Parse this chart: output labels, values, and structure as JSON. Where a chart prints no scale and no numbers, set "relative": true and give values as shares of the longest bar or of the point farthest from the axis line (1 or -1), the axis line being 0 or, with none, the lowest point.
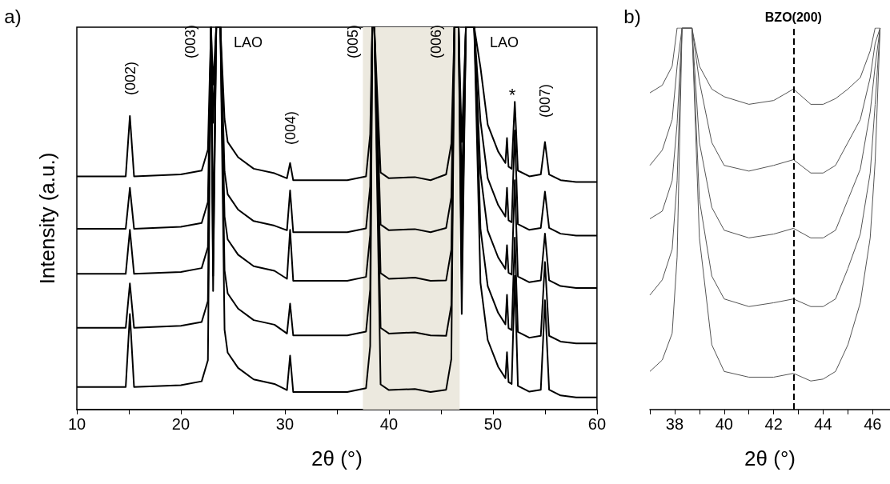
{
  "chart_data": [
    {
      "type": "line",
      "relative": true,
      "xlabel": "2θ (°)",
      "ylabel": "Intensity (a.u.)",
      "xlim": [
        10,
        60
      ],
      "xticks": [
        10,
        {
          "value": 15,
          "label": null
        },
        20,
        {
          "value": 25,
          "label": null
        },
        30,
        {
          "value": 35,
          "label": null
        },
        40,
        {
          "value": 45,
          "label": null
        },
        50,
        {
          "value": 55,
          "label": null
        },
        60
      ],
      "tick_labels": "x",
      "grid": false,
      "marker": "none",
      "line_style": "solid",
      "x": [
        10,
        14.7,
        15.1,
        15.5,
        20,
        22,
        22.6,
        22.9,
        23.1,
        23.4,
        23.8,
        24.2,
        24.5,
        25.5,
        27,
        29,
        30.2,
        30.5,
        30.8,
        33,
        36,
        37.8,
        38.2,
        38.4,
        38.6,
        39.2,
        40,
        42.5,
        44,
        45.5,
        46,
        46.3,
        46.7,
        47.0,
        47.4,
        47.8,
        48.2,
        48.8,
        49.5,
        50.5,
        51.2,
        51.35,
        51.5,
        51.8,
        52.1,
        52.4,
        53.5,
        54.6,
        55,
        55.4,
        56.5,
        58,
        60
      ],
      "series": [
        {
          "color": "#000000",
          "values": [
            0.61,
            0.61,
            0.768,
            0.61,
            0.615,
            0.625,
            0.68,
            1,
            0.85,
            1,
            1,
            0.76,
            0.7,
            0.66,
            0.63,
            0.618,
            0.605,
            0.645,
            0.6,
            0.6,
            0.6,
            0.61,
            0.72,
            1,
            1,
            0.62,
            0.605,
            0.608,
            0.6,
            0.615,
            0.695,
            1,
            1,
            0.7,
            1,
            1,
            1,
            0.895,
            0.745,
            0.675,
            0.645,
            0.71,
            0.635,
            0.63,
            0.805,
            0.625,
            0.61,
            0.615,
            0.7,
            0.615,
            0.6,
            0.595,
            0.595
          ]
        },
        {
          "color": "#000000",
          "values": [
            0.473,
            0.473,
            0.58,
            0.473,
            0.478,
            0.488,
            0.543,
            1,
            0.75,
            1,
            1,
            0.623,
            0.563,
            0.523,
            0.493,
            0.481,
            0.469,
            0.573,
            0.464,
            0.464,
            0.464,
            0.474,
            0.584,
            1,
            1,
            0.484,
            0.469,
            0.472,
            0.464,
            0.475,
            0.555,
            1,
            1,
            0.57,
            1,
            1,
            1,
            0.755,
            0.605,
            0.535,
            0.505,
            0.58,
            0.495,
            0.49,
            0.73,
            0.485,
            0.47,
            0.475,
            0.57,
            0.475,
            0.46,
            0.455,
            0.455
          ]
        },
        {
          "color": "#000000",
          "values": [
            0.355,
            0.355,
            0.47,
            0.355,
            0.36,
            0.37,
            0.425,
            1,
            0.31,
            1,
            1,
            0.505,
            0.445,
            0.405,
            0.375,
            0.363,
            0.342,
            0.47,
            0.337,
            0.337,
            0.337,
            0.347,
            0.457,
            1,
            1,
            0.357,
            0.342,
            0.345,
            0.337,
            0.338,
            0.418,
            1,
            1,
            0.45,
            1,
            1,
            1,
            0.618,
            0.468,
            0.398,
            0.368,
            0.43,
            0.358,
            0.353,
            0.6,
            0.348,
            0.333,
            0.338,
            0.46,
            0.338,
            0.323,
            0.318,
            0.318
          ]
        },
        {
          "color": "#000000",
          "values": [
            0.214,
            0.214,
            0.33,
            0.214,
            0.219,
            0.229,
            0.284,
            1,
            0.45,
            1,
            1,
            0.364,
            0.304,
            0.264,
            0.234,
            0.222,
            0.199,
            0.277,
            0.194,
            0.194,
            0.194,
            0.204,
            0.314,
            1,
            1,
            0.214,
            0.199,
            0.202,
            0.194,
            0.193,
            0.273,
            1,
            1,
            0.34,
            1,
            1,
            1,
            0.473,
            0.323,
            0.253,
            0.223,
            0.3,
            0.213,
            0.208,
            0.45,
            0.203,
            0.188,
            0.193,
            0.386,
            0.193,
            0.178,
            0.173,
            0.173
          ]
        },
        {
          "color": "#000000",
          "values": [
            0.059,
            0.059,
            0.25,
            0.059,
            0.064,
            0.074,
            0.129,
            1,
            0.35,
            1,
            1,
            0.209,
            0.149,
            0.109,
            0.079,
            0.067,
            0.051,
            0.141,
            0.046,
            0.046,
            0.046,
            0.056,
            0.166,
            1,
            1,
            0.066,
            0.051,
            0.054,
            0.046,
            0.052,
            0.132,
            1,
            1,
            0.25,
            1,
            1,
            1,
            0.332,
            0.182,
            0.112,
            0.082,
            0.15,
            0.072,
            0.067,
            0.35,
            0.062,
            0.047,
            0.052,
            0.286,
            0.052,
            0.037,
            0.032,
            0.032
          ]
        }
      ],
      "bands": [
        {
          "axis": "x",
          "from": 37.5,
          "to": 46.8,
          "color": "#ece9df"
        }
      ],
      "annotations": [
        "a)",
        "(002)",
        "(003)",
        "LAO",
        "(004)",
        "(005)",
        "(006)",
        "LAO",
        "*",
        "(007)"
      ]
    },
    {
      "type": "line",
      "relative": true,
      "xlabel": "2θ (°)",
      "xlim": [
        37,
        46.7
      ],
      "xticks": [
        {
          "value": 37,
          "label": null
        },
        38,
        {
          "value": 39,
          "label": null
        },
        40,
        {
          "value": 41,
          "label": null
        },
        42,
        {
          "value": 43,
          "label": null
        },
        44,
        {
          "value": 45,
          "label": null
        },
        46
      ],
      "tick_labels": "x",
      "grid": false,
      "marker": "none",
      "line_style": "solid",
      "x": [
        37,
        37.5,
        37.9,
        38.1,
        38.3,
        38.7,
        39.0,
        39.5,
        40,
        41,
        42,
        42.8,
        43.5,
        44,
        44.5,
        45,
        45.5,
        45.9,
        46.1,
        46.3
      ],
      "series": [
        {
          "color": "#555555",
          "values": [
            0.83,
            0.85,
            0.9,
            1,
            1,
            1,
            0.9,
            0.84,
            0.82,
            0.8,
            0.81,
            0.84,
            0.8,
            0.8,
            0.815,
            0.84,
            0.87,
            0.94,
            1,
            1
          ]
        },
        {
          "color": "#555555",
          "values": [
            0.64,
            0.68,
            0.76,
            0.9,
            1,
            1,
            0.86,
            0.7,
            0.64,
            0.625,
            0.64,
            0.655,
            0.62,
            0.62,
            0.64,
            0.7,
            0.76,
            0.87,
            0.96,
            1
          ]
        },
        {
          "color": "#555555",
          "values": [
            0.5,
            0.52,
            0.6,
            0.75,
            1,
            1,
            0.7,
            0.53,
            0.47,
            0.45,
            0.46,
            0.475,
            0.45,
            0.45,
            0.47,
            0.55,
            0.63,
            0.78,
            0.9,
            1
          ]
        },
        {
          "color": "#555555",
          "values": [
            0.3,
            0.34,
            0.42,
            0.6,
            1,
            1,
            0.55,
            0.35,
            0.29,
            0.27,
            0.28,
            0.29,
            0.27,
            0.27,
            0.29,
            0.37,
            0.46,
            0.62,
            0.8,
            1
          ]
        },
        {
          "color": "#555555",
          "values": [
            0.1,
            0.13,
            0.2,
            0.4,
            1,
            1,
            0.45,
            0.17,
            0.1,
            0.085,
            0.085,
            0.095,
            0.075,
            0.08,
            0.1,
            0.17,
            0.28,
            0.45,
            0.65,
            1
          ]
        }
      ],
      "ref_lines": [
        {
          "axis": "x",
          "value": 42.8,
          "label": "BZO(200)",
          "line_style": "dashed",
          "color": "#000000"
        }
      ],
      "annotations": [
        "b)"
      ]
    }
  ]
}
